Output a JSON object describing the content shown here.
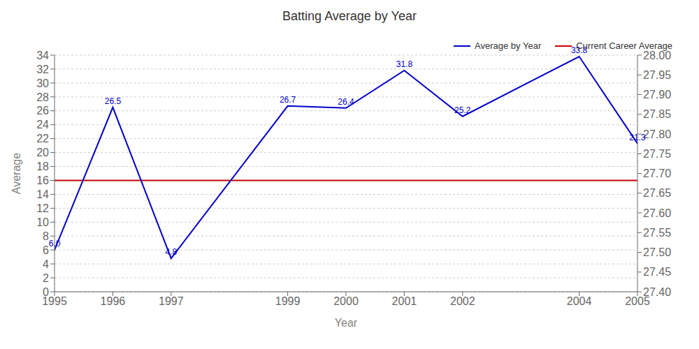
{
  "chart_data": {
    "type": "line",
    "title": "Batting Average by Year",
    "x_label": "Year",
    "y_label": "Average",
    "x": [
      1995,
      1996,
      1997,
      1999,
      2000,
      2001,
      2002,
      2004,
      2005
    ],
    "series": [
      {
        "name": "Average by Year",
        "color": "#0000cc",
        "values": [
          6.0,
          26.5,
          4.8,
          26.7,
          26.4,
          31.8,
          25.2,
          33.8,
          21.3
        ],
        "value_labels": [
          "6.0",
          "26.5",
          "4.8",
          "26.7",
          "26.4",
          "31.8",
          "25.2",
          "33.8",
          "21.3"
        ]
      },
      {
        "name": "Current Career Average",
        "type": "hline",
        "color": "#cc0000",
        "y": 16.0
      }
    ],
    "data_labels": true,
    "xlim": [
      1995,
      2005
    ],
    "xticks": [
      1995,
      1996,
      1997,
      1999,
      2000,
      2001,
      2002,
      2004,
      2005
    ],
    "ylim": [
      0,
      34
    ],
    "yticks": [
      0,
      2,
      4,
      6,
      8,
      10,
      12,
      14,
      16,
      18,
      20,
      22,
      24,
      26,
      28,
      30,
      32,
      34
    ],
    "y2lim": [
      27.4,
      28.0
    ],
    "y2ticks": [
      {
        "value": 27.4,
        "label": "27.40"
      },
      27.45,
      {
        "value": 27.5,
        "label": "27.50"
      },
      27.55,
      {
        "value": 27.6,
        "label": "27.60"
      },
      27.65,
      {
        "value": 27.7,
        "label": "27.70"
      },
      27.75,
      {
        "value": 27.8,
        "label": "27.80"
      },
      27.85,
      {
        "value": 27.9,
        "label": "27.90"
      },
      27.95,
      {
        "value": 28.0,
        "label": "28.00"
      }
    ],
    "grid": "y",
    "legend": "upper right"
  }
}
